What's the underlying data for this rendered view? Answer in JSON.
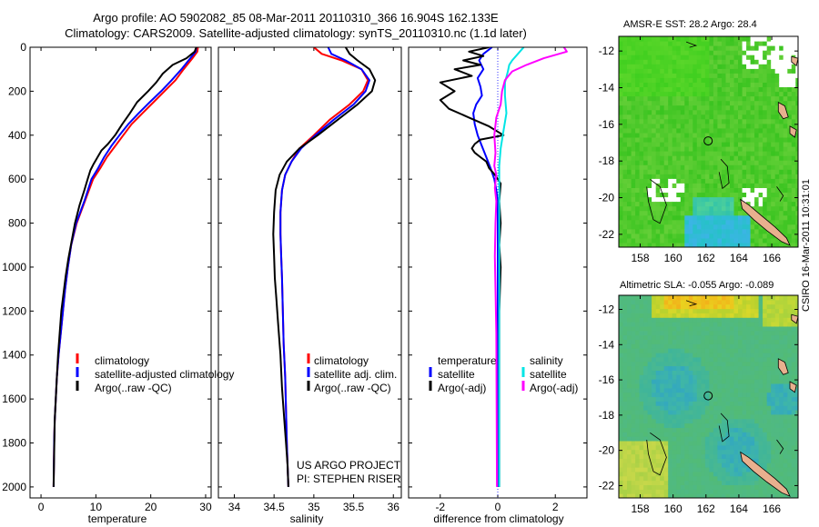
{
  "header": {
    "line1": "Argo profile: AO 5902082_85 08-Mar-2011 20110310_366 16.904S 162.133E",
    "line2": "Climatology: CARS2009. Satellite-adjusted climatology: synTS_20110310.nc (1.1d later)"
  },
  "stamp": "CSIRO 16-Mar-2011 10:31:01",
  "credit": {
    "line1": "US ARGO PROJECT",
    "line2": "PI: STEPHEN RISER"
  },
  "colors": {
    "climatology": "#ff0000",
    "satellite": "#0000ff",
    "argo": "#000000",
    "sat_diff_s": "#00e5e5",
    "argo_diff_s": "#ff00ff",
    "land": "#e8b08e"
  },
  "chart_data": [
    {
      "id": "temperature",
      "type": "line",
      "xlabel": "temperature",
      "xlim": [
        -2,
        31
      ],
      "ylim": [
        0,
        2050
      ],
      "xticks": [
        0,
        10,
        20,
        30
      ],
      "yticks": [
        0,
        200,
        400,
        600,
        800,
        1000,
        1200,
        1400,
        1600,
        1800,
        2000
      ],
      "legend": [
        "climatology",
        "satellite-adjusted climatology",
        "Argo(..raw -QC)"
      ],
      "series": [
        {
          "name": "climatology",
          "color": "#ff0000",
          "width": 2,
          "x": [
            28.6,
            28.5,
            27.6,
            26.0,
            24.5,
            22.5,
            20.5,
            18.5,
            16.5,
            15.0,
            13.5,
            12.0,
            10.8,
            9.5,
            8.0,
            6.5,
            5.5,
            4.9,
            4.4,
            4.0,
            3.6,
            3.2,
            2.9,
            2.7,
            2.5,
            2.4,
            2.3
          ],
          "y": [
            0,
            20,
            50,
            100,
            150,
            200,
            250,
            300,
            350,
            400,
            450,
            500,
            550,
            600,
            700,
            800,
            900,
            1000,
            1100,
            1200,
            1300,
            1400,
            1500,
            1600,
            1700,
            1800,
            2000
          ]
        },
        {
          "name": "satellite-adjusted climatology",
          "color": "#0000ff",
          "width": 2,
          "x": [
            28.3,
            28.2,
            27.2,
            25.6,
            23.8,
            21.9,
            19.8,
            17.8,
            15.9,
            14.3,
            12.8,
            11.5,
            10.4,
            9.2,
            7.9,
            6.4,
            5.5,
            4.9,
            4.4,
            4.0,
            3.6,
            3.2,
            2.9,
            2.7,
            2.5,
            2.4,
            2.3
          ],
          "y": [
            0,
            20,
            50,
            100,
            150,
            200,
            250,
            300,
            350,
            400,
            450,
            500,
            550,
            600,
            700,
            800,
            900,
            1000,
            1100,
            1200,
            1300,
            1400,
            1500,
            1600,
            1700,
            1800,
            2000
          ]
        },
        {
          "name": "Argo(..raw -QC)",
          "color": "#000000",
          "width": 2,
          "x": [
            28.3,
            28.0,
            26.5,
            24.0,
            22.2,
            21.0,
            19.5,
            17.5,
            16.2,
            14.8,
            13.5,
            12.2,
            11.0,
            10.3,
            9.6,
            9.0,
            8.5,
            7.9,
            7.0,
            6.2,
            5.6,
            5.0,
            4.5,
            4.1,
            3.7,
            3.4,
            3.1,
            2.9,
            2.7,
            2.5,
            2.4,
            2.3
          ],
          "y": [
            0,
            20,
            50,
            80,
            120,
            160,
            200,
            250,
            300,
            350,
            400,
            440,
            470,
            500,
            530,
            560,
            600,
            650,
            720,
            800,
            880,
            960,
            1040,
            1120,
            1200,
            1300,
            1400,
            1500,
            1600,
            1700,
            1850,
            2000
          ]
        }
      ]
    },
    {
      "id": "salinity",
      "type": "line",
      "xlabel": "salinity",
      "xlim": [
        33.8,
        36.1
      ],
      "ylim": [
        0,
        2050
      ],
      "xticks": [
        34,
        34.5,
        35,
        35.5,
        36
      ],
      "yticks": [
        0,
        200,
        400,
        600,
        800,
        1000,
        1200,
        1400,
        1600,
        1800,
        2000
      ],
      "legend": [
        "climatology",
        "satellite adj. clim.",
        "Argo(..raw -QC)"
      ],
      "series": [
        {
          "name": "climatology",
          "color": "#ff0000",
          "width": 2,
          "x": [
            35.0,
            35.1,
            35.35,
            35.6,
            35.68,
            35.62,
            35.45,
            35.2,
            35.0,
            34.82,
            34.72,
            34.64,
            34.6,
            34.58,
            34.58,
            34.59,
            34.6,
            34.61,
            34.62,
            34.64,
            34.65,
            34.66,
            34.67,
            34.68
          ],
          "y": [
            0,
            30,
            60,
            100,
            150,
            200,
            260,
            330,
            400,
            460,
            520,
            580,
            650,
            750,
            850,
            950,
            1050,
            1200,
            1350,
            1500,
            1650,
            1800,
            1900,
            2000
          ]
        },
        {
          "name": "satellite adj. clim.",
          "color": "#0000ff",
          "width": 2,
          "x": [
            35.18,
            35.22,
            35.4,
            35.6,
            35.7,
            35.65,
            35.5,
            35.25,
            35.02,
            34.84,
            34.72,
            34.64,
            34.6,
            34.58,
            34.58,
            34.59,
            34.6,
            34.61,
            34.62,
            34.64,
            34.65,
            34.66,
            34.67,
            34.68
          ],
          "y": [
            0,
            30,
            60,
            100,
            150,
            200,
            260,
            330,
            400,
            460,
            520,
            580,
            650,
            750,
            850,
            950,
            1050,
            1200,
            1350,
            1500,
            1650,
            1800,
            1900,
            2000
          ]
        },
        {
          "name": "Argo(..raw -QC)",
          "color": "#000000",
          "width": 2,
          "x": [
            35.4,
            35.45,
            35.55,
            35.7,
            35.77,
            35.73,
            35.55,
            35.3,
            35.05,
            34.82,
            34.66,
            34.57,
            34.52,
            34.5,
            34.49,
            34.5,
            34.51,
            34.53,
            34.55,
            34.58,
            34.6,
            34.63,
            34.65,
            34.67,
            34.68
          ],
          "y": [
            0,
            30,
            60,
            100,
            150,
            200,
            260,
            330,
            400,
            460,
            520,
            580,
            650,
            750,
            850,
            950,
            1050,
            1150,
            1250,
            1400,
            1550,
            1700,
            1800,
            1900,
            2000
          ]
        }
      ]
    },
    {
      "id": "difference",
      "type": "line",
      "xlabel": "difference from climatology",
      "xlim": [
        -3.1,
        3.1
      ],
      "ylim": [
        0,
        2050
      ],
      "xticks": [
        -2,
        0,
        2
      ],
      "yticks": [
        0,
        200,
        400,
        600,
        800,
        1000,
        1200,
        1400,
        1600,
        1800,
        2000
      ],
      "legend_temperature": {
        "title": "temperature",
        "items": [
          "satellite",
          "Argo(-adj)"
        ]
      },
      "legend_salinity": {
        "title": "salinity",
        "items": [
          "satellite",
          "Argo(-adj)"
        ]
      },
      "series": [
        {
          "name": "temperature satellite",
          "color": "#0000ff",
          "width": 2,
          "x": [
            -0.2,
            -0.5,
            -0.65,
            -0.5,
            -0.7,
            -0.6,
            -0.55,
            -0.75,
            -0.85,
            -0.8,
            -0.7,
            -0.55,
            -0.4,
            -0.25,
            -0.12,
            -0.05,
            0,
            0,
            0,
            0
          ],
          "y": [
            0,
            30,
            60,
            100,
            140,
            180,
            220,
            260,
            300,
            350,
            400,
            450,
            500,
            550,
            600,
            650,
            700,
            900,
            1400,
            2000
          ]
        },
        {
          "name": "temperature Argo(-adj)",
          "color": "#000000",
          "width": 2,
          "x": [
            -0.3,
            -1.0,
            -0.5,
            -1.2,
            -0.6,
            -1.5,
            -0.9,
            -2.0,
            -1.5,
            -2.0,
            -1.7,
            -1.0,
            -0.3,
            0.2,
            -0.6,
            -0.8,
            -0.9,
            -0.8,
            -0.6,
            -0.4,
            -0.3,
            -0.1,
            0.1,
            0.05,
            0.1,
            0.05,
            0.1,
            0.05,
            0.05,
            0.05
          ],
          "y": [
            0,
            20,
            40,
            60,
            80,
            100,
            130,
            160,
            200,
            240,
            280,
            320,
            360,
            400,
            420,
            440,
            460,
            480,
            500,
            520,
            550,
            580,
            620,
            700,
            800,
            900,
            1000,
            1200,
            1500,
            2000
          ]
        },
        {
          "name": "salinity satellite",
          "color": "#00e5e5",
          "width": 2,
          "x": [
            0.9,
            0.7,
            0.5,
            0.4,
            0.35,
            0.25,
            0.25,
            0.3,
            0.2,
            0.1,
            0.05,
            0.05,
            0.05,
            0.05,
            0.05,
            0.05,
            0.05
          ],
          "y": [
            0,
            30,
            60,
            80,
            110,
            160,
            220,
            300,
            380,
            460,
            540,
            620,
            700,
            900,
            1200,
            1500,
            2000
          ]
        },
        {
          "name": "salinity Argo(-adj)",
          "color": "#ff00ff",
          "width": 2,
          "x": [
            2.3,
            2.4,
            1.6,
            1.0,
            0.5,
            0.25,
            0.15,
            0.1,
            -0.05,
            -0.12,
            -0.08,
            -0.12,
            -0.05,
            -0.1,
            -0.05,
            -0.08,
            -0.1,
            -0.08,
            -0.05,
            -0.04,
            -0.03
          ],
          "y": [
            0,
            20,
            50,
            80,
            110,
            150,
            200,
            260,
            320,
            400,
            480,
            540,
            580,
            640,
            700,
            800,
            950,
            1100,
            1300,
            1600,
            2000
          ]
        }
      ]
    },
    {
      "id": "sst_map",
      "type": "heatmap",
      "title": "AMSR-E SST: 28.2 Argo: 28.4",
      "xlim": [
        156.7,
        167.6
      ],
      "ylim": [
        -22.7,
        -11.2
      ],
      "xticks": [
        158,
        160,
        162,
        164,
        166
      ],
      "yticks": [
        -12,
        -14,
        -16,
        -18,
        -20,
        -22
      ],
      "marker": {
        "lon": 162.133,
        "lat": -16.904
      }
    },
    {
      "id": "sla_map",
      "type": "heatmap",
      "title": "Altimetric SLA: -0.055 Argo: -0.089",
      "xlim": [
        156.7,
        167.6
      ],
      "ylim": [
        -22.7,
        -11.2
      ],
      "xticks": [
        158,
        160,
        162,
        164,
        166
      ],
      "yticks": [
        -12,
        -14,
        -16,
        -18,
        -20,
        -22
      ],
      "marker": {
        "lon": 162.133,
        "lat": -16.904
      }
    }
  ]
}
